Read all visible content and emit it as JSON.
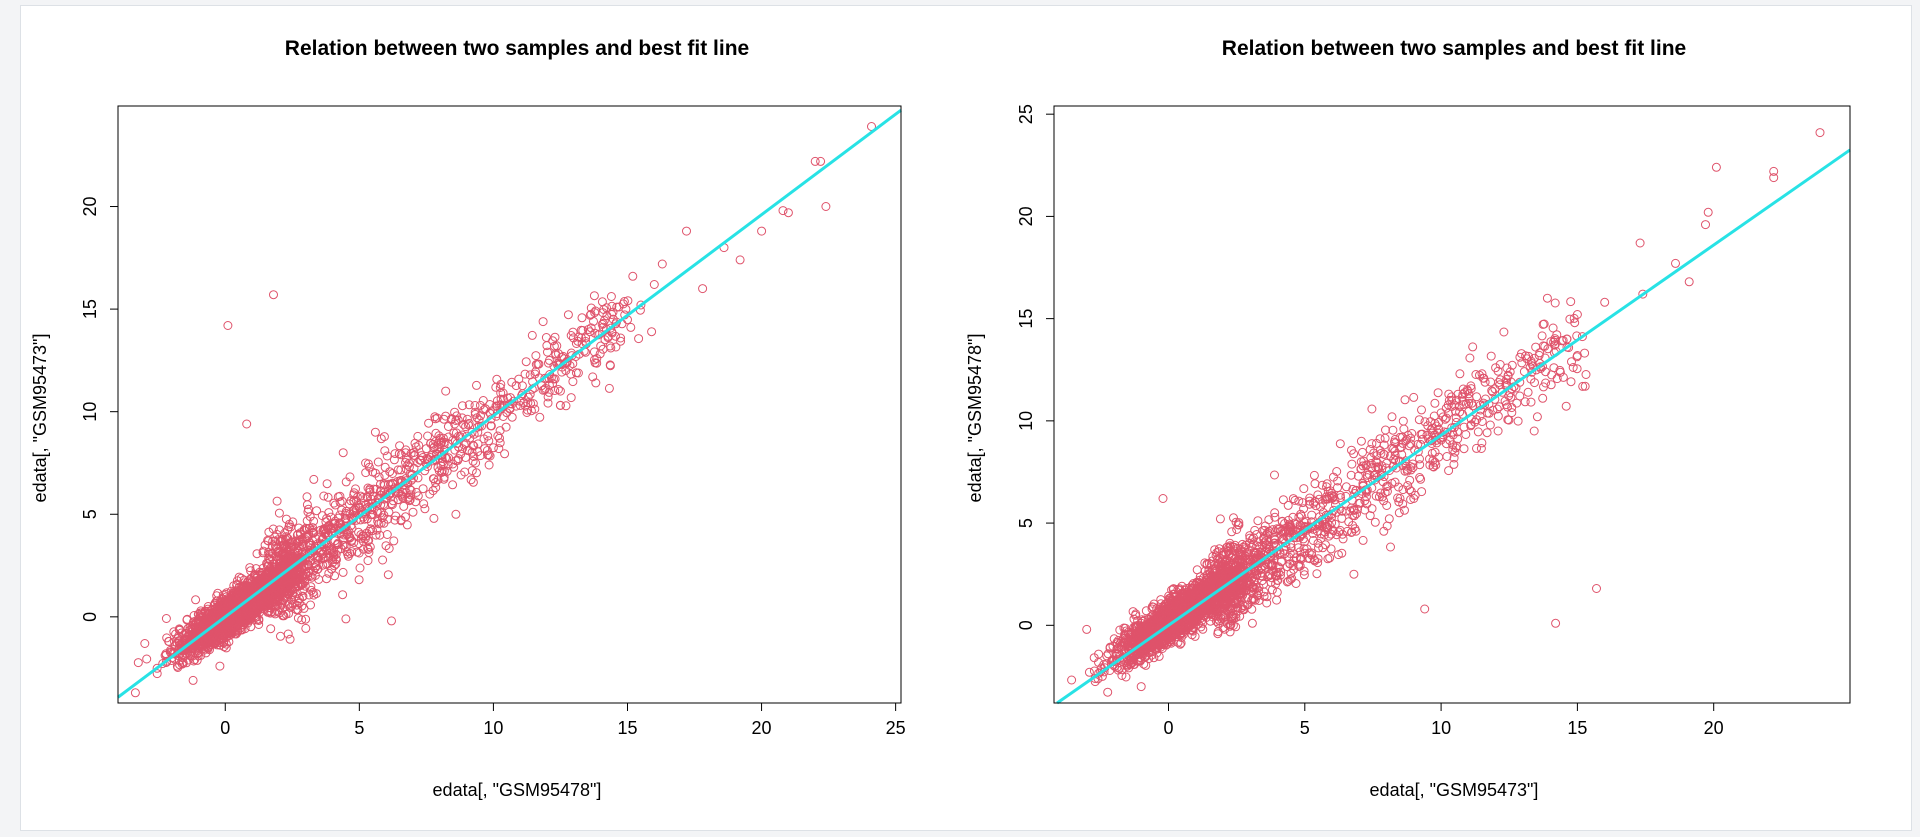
{
  "colors": {
    "points": "#df536b",
    "fit_line": "#28e2e5",
    "axis": "#000000",
    "background": "#ffffff"
  },
  "chart_data": [
    {
      "type": "scatter",
      "title": "Relation between two samples and best fit line",
      "xlabel": "edata[, \"GSM95478\"]",
      "ylabel": "edata[, \"GSM95473\"]",
      "xlim": [
        -4.0,
        25.2
      ],
      "ylim": [
        -4.2,
        24.9
      ],
      "xticks": [
        0,
        5,
        10,
        15,
        20,
        25
      ],
      "yticks": [
        0,
        5,
        10,
        15,
        20
      ],
      "marker": "open-circle",
      "fit_line": {
        "intercept": 0.0,
        "slope": 0.98
      },
      "points": [
        [
          24.1,
          23.9
        ],
        [
          22.4,
          20.0
        ],
        [
          22.0,
          22.2
        ],
        [
          22.2,
          22.2
        ],
        [
          21.0,
          19.7
        ],
        [
          20.8,
          19.8
        ],
        [
          20.0,
          18.8
        ],
        [
          19.2,
          17.4
        ],
        [
          18.6,
          18.0
        ],
        [
          17.2,
          18.8
        ],
        [
          17.8,
          16.0
        ],
        [
          16.3,
          17.2
        ],
        [
          15.9,
          13.9
        ],
        [
          16.0,
          16.2
        ],
        [
          15.5,
          15.2
        ],
        [
          15.2,
          16.6
        ],
        [
          14.6,
          15.1
        ],
        [
          14.0,
          13.2
        ],
        [
          13.6,
          13.9
        ],
        [
          13.2,
          12.8
        ],
        [
          12.7,
          12.0
        ],
        [
          12.3,
          11.6
        ],
        [
          12.5,
          10.3
        ],
        [
          11.6,
          12.3
        ],
        [
          11.0,
          10.3
        ],
        [
          11.3,
          10.7
        ],
        [
          10.2,
          8.2
        ],
        [
          0.1,
          14.2
        ],
        [
          1.8,
          15.7
        ],
        [
          0.8,
          9.4
        ],
        [
          6.2,
          -0.2
        ],
        [
          7.0,
          5.1
        ],
        [
          8.6,
          5.0
        ],
        [
          3.3,
          6.7
        ],
        [
          4.5,
          -0.1
        ],
        [
          -1.2,
          -3.1
        ],
        [
          -3.0,
          -1.3
        ],
        [
          -0.2,
          -2.4
        ],
        [
          4.4,
          8.0
        ],
        [
          5.6,
          9.0
        ]
      ],
      "cloud": {
        "n": 2000,
        "center": [
          0.4,
          0.3
        ],
        "spread": 1.2,
        "tail_n": 1200,
        "tail_range": [
          2,
          15
        ],
        "tail_noise": 1.0
      }
    },
    {
      "type": "scatter",
      "title": "Relation between two samples and best fit line",
      "xlabel": "edata[, \"GSM95473\"]",
      "ylabel": "edata[, \"GSM95478\"]",
      "xlim": [
        -4.2,
        25.0
      ],
      "ylim": [
        -3.8,
        25.4
      ],
      "xticks": [
        0,
        5,
        10,
        15,
        20
      ],
      "yticks": [
        0,
        5,
        10,
        15,
        20,
        25
      ],
      "marker": "open-circle",
      "fit_line": {
        "intercept": 0.0,
        "slope": 0.93
      },
      "points": [
        [
          23.9,
          24.1
        ],
        [
          22.2,
          22.2
        ],
        [
          22.2,
          21.9
        ],
        [
          20.1,
          22.4
        ],
        [
          19.8,
          20.2
        ],
        [
          19.7,
          19.6
        ],
        [
          18.6,
          17.7
        ],
        [
          19.1,
          16.8
        ],
        [
          17.4,
          16.2
        ],
        [
          17.3,
          18.7
        ],
        [
          16.0,
          15.8
        ],
        [
          15.0,
          15.2
        ],
        [
          14.9,
          14.8
        ],
        [
          13.9,
          16.0
        ],
        [
          13.6,
          13.2
        ],
        [
          12.0,
          12.6
        ],
        [
          11.5,
          12.3
        ],
        [
          10.8,
          11.3
        ],
        [
          10.3,
          11.0
        ],
        [
          9.4,
          0.8
        ],
        [
          14.2,
          0.1
        ],
        [
          15.7,
          1.8
        ],
        [
          6.8,
          2.5
        ],
        [
          -0.2,
          6.2
        ],
        [
          8.2,
          10.2
        ],
        [
          -2.9,
          -2.3
        ],
        [
          -1.0,
          -3.0
        ],
        [
          -3.0,
          -0.2
        ],
        [
          9.0,
          6.2
        ],
        [
          7.9,
          4.6
        ]
      ],
      "cloud": {
        "n": 2000,
        "center": [
          0.3,
          0.4
        ],
        "spread": 1.2,
        "tail_n": 1200,
        "tail_range": [
          2,
          15
        ],
        "tail_noise": 1.0
      }
    }
  ]
}
